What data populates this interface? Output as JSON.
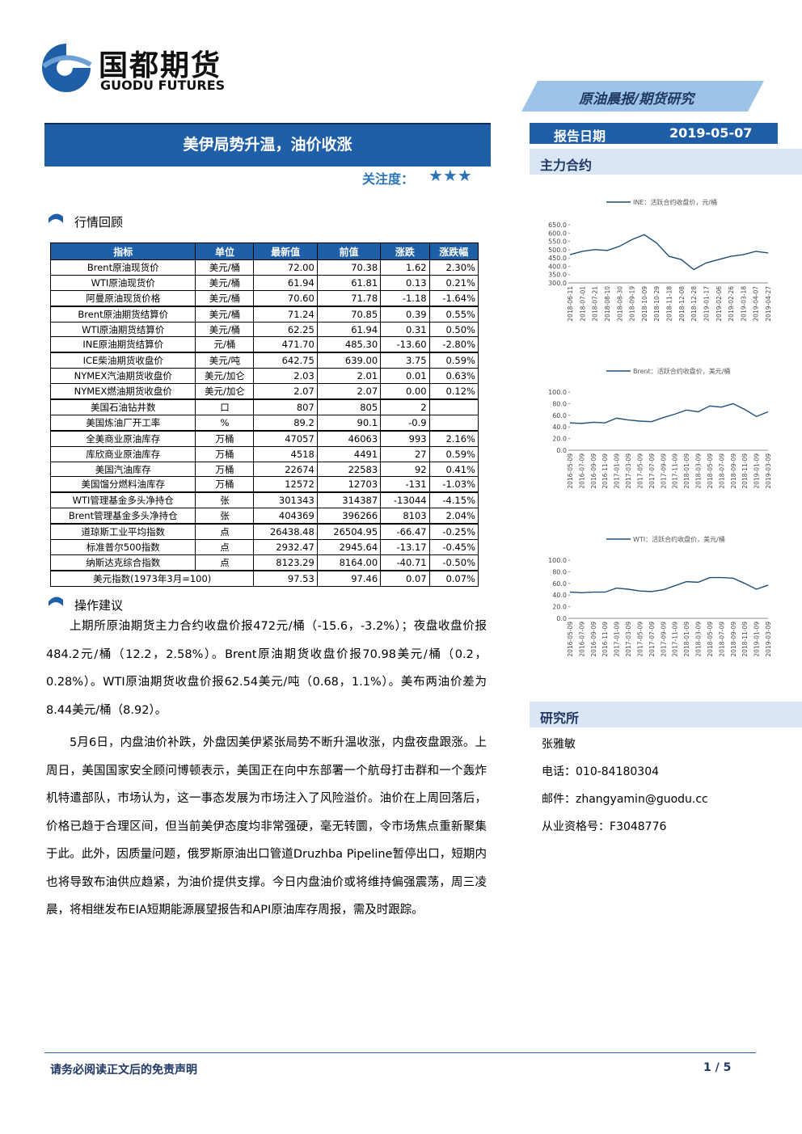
{
  "header": {
    "logo_cn": "国都期货",
    "logo_en": "GUODU FUTURES",
    "tag": "原油晨报/期货研究",
    "date_label": "报告日期",
    "date": "2019-05-07",
    "title": "美伊局势升温，油价收涨",
    "attention": "关注度：",
    "stars": "★★★",
    "contracts": "主力合约"
  },
  "section1": "行情回顾",
  "table": {
    "header": [
      "指标",
      "单位",
      "最新值",
      "前值",
      "涨跌",
      "涨跌幅"
    ],
    "rows": [
      [
        "Brent原油现货价",
        "美元/桶",
        "72.00",
        "70.38",
        "1.62",
        "2.30%"
      ],
      [
        "WTI原油现货价",
        "美元/桶",
        "61.94",
        "61.81",
        "0.13",
        "0.21%"
      ],
      [
        "阿曼原油现货价格",
        "美元/桶",
        "70.60",
        "71.78",
        "-1.18",
        "-1.64%"
      ],
      [
        "Brent原油期货结算价",
        "美元/桶",
        "71.24",
        "70.85",
        "0.39",
        "0.55%"
      ],
      [
        "WTI原油期货结算价",
        "美元/桶",
        "62.25",
        "61.94",
        "0.31",
        "0.50%"
      ],
      [
        "INE原油期货结算价",
        "元/桶",
        "471.70",
        "485.30",
        "-13.60",
        "-2.80%"
      ],
      [
        "ICE柴油期货收盘价",
        "美元/吨",
        "642.75",
        "639.00",
        "3.75",
        "0.59%"
      ],
      [
        "NYMEX汽油期货收盘价",
        "美元/加仑",
        "2.03",
        "2.01",
        "0.01",
        "0.63%"
      ],
      [
        "NYMEX燃油期货收盘价",
        "美元/加仑",
        "2.07",
        "2.07",
        "0.00",
        "0.12%"
      ],
      [
        "美国石油钻井数",
        "口",
        "807",
        "805",
        "2",
        null
      ],
      [
        "美国炼油厂开工率",
        "%",
        "89.2",
        "90.1",
        "-0.9",
        null
      ],
      [
        "全美商业原油库存",
        "万桶",
        "47057",
        "46063",
        "993",
        "2.16%"
      ],
      [
        "库欣商业原油库存",
        "万桶",
        "4518",
        "4491",
        "27",
        "0.59%"
      ],
      [
        "美国汽油库存",
        "万桶",
        "22674",
        "22583",
        "92",
        "0.41%"
      ],
      [
        "美国馏分燃料油库存",
        "万桶",
        "12572",
        "12703",
        "-131",
        "-1.03%"
      ],
      [
        "WTI管理基金多头净持仓",
        "张",
        "301343",
        "314387",
        "-13044",
        "-4.15%"
      ],
      [
        "Brent管理基金多头净持仓",
        "张",
        "404369",
        "396266",
        "8103",
        "2.04%"
      ],
      [
        "道琼斯工业平均指数",
        "点",
        "26438.48",
        "26504.95",
        "-66.47",
        "-0.25%"
      ],
      [
        "标准普尔500指数",
        "点",
        "2932.47",
        "2945.64",
        "-13.17",
        "-0.45%"
      ],
      [
        "纳斯达克综合指数",
        "点",
        "8123.29",
        "8164.00",
        "-40.71",
        "-0.50%"
      ],
      [
        "美元指数(1973年3月=100)",
        null,
        "97.53",
        "97.46",
        "0.07",
        "0.07%"
      ]
    ]
  },
  "section2": "操作建议",
  "paragraphs": [
    "上期所原油期货主力合约收盘价报472元/桶（-15.6，-3.2%）；夜盘收盘价报484.2元/桶（12.2，2.58%）。Brent原油期货收盘价报70.98美元/桶（0.2，0.28%）。WTI原油期货收盘价报62.54美元/吨（0.68，1.1%）。美布两油价差为8.44美元/桶（8.92）。",
    "5月6日，内盘油价补跌，外盘因美伊紧张局势不断升温收涨，内盘夜盘跟涨。上周日，美国国家安全顾问博顿表示，美国正在向中东部署一个航母打击群和一个轰炸机特遣部队，市场认为，这一事态发展为市场注入了风险溢价。油价在上周回落后，价格已趋于合理区间，但当前美伊态度均非常强硬，毫无转圜，令市场焦点重新聚集于此。此外，因质量问题，俄罗斯原油出口管道Druzhba Pipeline暂停出口，短期内也将导致布油供应趋紧，为油价提供支撑。今日内盘油价或将维持偏强震荡，周三凌晨，将相继发布EIA短期能源展望报告和API原油库存周报，需及时跟踪。"
  ],
  "charts": [
    {
      "type": "line",
      "categories": [
        "2018-06-11",
        "2018-07-01",
        "2018-07-21",
        "2018-08-10",
        "2018-08-30",
        "2018-09-19",
        "2018-10-09",
        "2018-10-29",
        "2018-11-18",
        "2018-12-08",
        "2018-12-28",
        "2019-01-17",
        "2019-02-06",
        "2019-02-26",
        "2019-03-18",
        "2019-04-07",
        "2019-04-27"
      ],
      "series": [
        {
          "name": "INE：活跃合约收盘价，元/桶",
          "color": "#1f4e79",
          "values": [
            470,
            490,
            500,
            495,
            520,
            560,
            590,
            540,
            460,
            440,
            380,
            420,
            440,
            460,
            470,
            490,
            480
          ]
        }
      ],
      "ylim": [
        300,
        650
      ],
      "yticks": [
        {
          "value": 300,
          "label": "300.0"
        },
        {
          "value": 350,
          "label": "350.0"
        },
        {
          "value": 400,
          "label": "400.0"
        },
        {
          "value": 450,
          "label": "450.0"
        },
        {
          "value": 500,
          "label": "500.0"
        },
        {
          "value": 550,
          "label": "550.0"
        },
        {
          "value": 600,
          "label": "600.0"
        },
        {
          "value": 650,
          "label": "650.0"
        }
      ]
    },
    {
      "type": "line",
      "categories": [
        "2016-05-09",
        "2016-07-09",
        "2016-09-09",
        "2016-11-09",
        "2017-01-09",
        "2017-03-09",
        "2017-05-09",
        "2017-07-09",
        "2017-09-09",
        "2017-11-09",
        "2018-01-09",
        "2018-03-09",
        "2018-05-09",
        "2018-07-09",
        "2018-09-09",
        "2018-11-09",
        "2019-01-09",
        "2019-03-09"
      ],
      "series": [
        {
          "name": "Brent：活跃合约收盘价，美元/桶",
          "color": "#1f4e79",
          "values": [
            47,
            46,
            48,
            47,
            55,
            52,
            50,
            49,
            56,
            62,
            69,
            66,
            76,
            74,
            80,
            70,
            58,
            66
          ]
        }
      ],
      "ylim": [
        0,
        100
      ],
      "yticks": [
        {
          "value": 0,
          "label": "0.0"
        },
        {
          "value": 20,
          "label": "20.0"
        },
        {
          "value": 40,
          "label": "40.0"
        },
        {
          "value": 60,
          "label": "60.0"
        },
        {
          "value": 80,
          "label": "80.0"
        },
        {
          "value": 100,
          "label": "100.0"
        }
      ]
    },
    {
      "type": "line",
      "categories": [
        "2016-05-09",
        "2016-07-09",
        "2016-09-09",
        "2016-11-09",
        "2017-01-09",
        "2017-03-09",
        "2017-05-09",
        "2017-07-09",
        "2017-09-09",
        "2017-11-09",
        "2018-01-09",
        "2018-03-09",
        "2018-05-09",
        "2018-07-09",
        "2018-09-09",
        "2018-11-09",
        "2019-01-09",
        "2019-03-09"
      ],
      "series": [
        {
          "name": "WTI：活跃合约收盘价，美元/桶",
          "color": "#1f4e79",
          "values": [
            45,
            44,
            45,
            45,
            52,
            50,
            47,
            46,
            49,
            56,
            63,
            62,
            70,
            70,
            69,
            60,
            50,
            57
          ]
        }
      ],
      "ylim": [
        0,
        100
      ],
      "yticks": [
        {
          "value": 0,
          "label": "0.0"
        },
        {
          "value": 20,
          "label": "20.0"
        },
        {
          "value": 40,
          "label": "40.0"
        },
        {
          "value": 60,
          "label": "60.0"
        },
        {
          "value": 80,
          "label": "80.0"
        },
        {
          "value": 100,
          "label": "100.0"
        }
      ]
    }
  ],
  "sidebar": {
    "title": "研究所",
    "name": "张雅敏",
    "phone": "电话：010-84180304",
    "email": "邮件：zhangyamin@guodu.cc",
    "license": "从业资格号：F3048776"
  },
  "footer": {
    "disclaimer": "请务必阅读正文后的免责声明",
    "page": "1 / 5"
  }
}
